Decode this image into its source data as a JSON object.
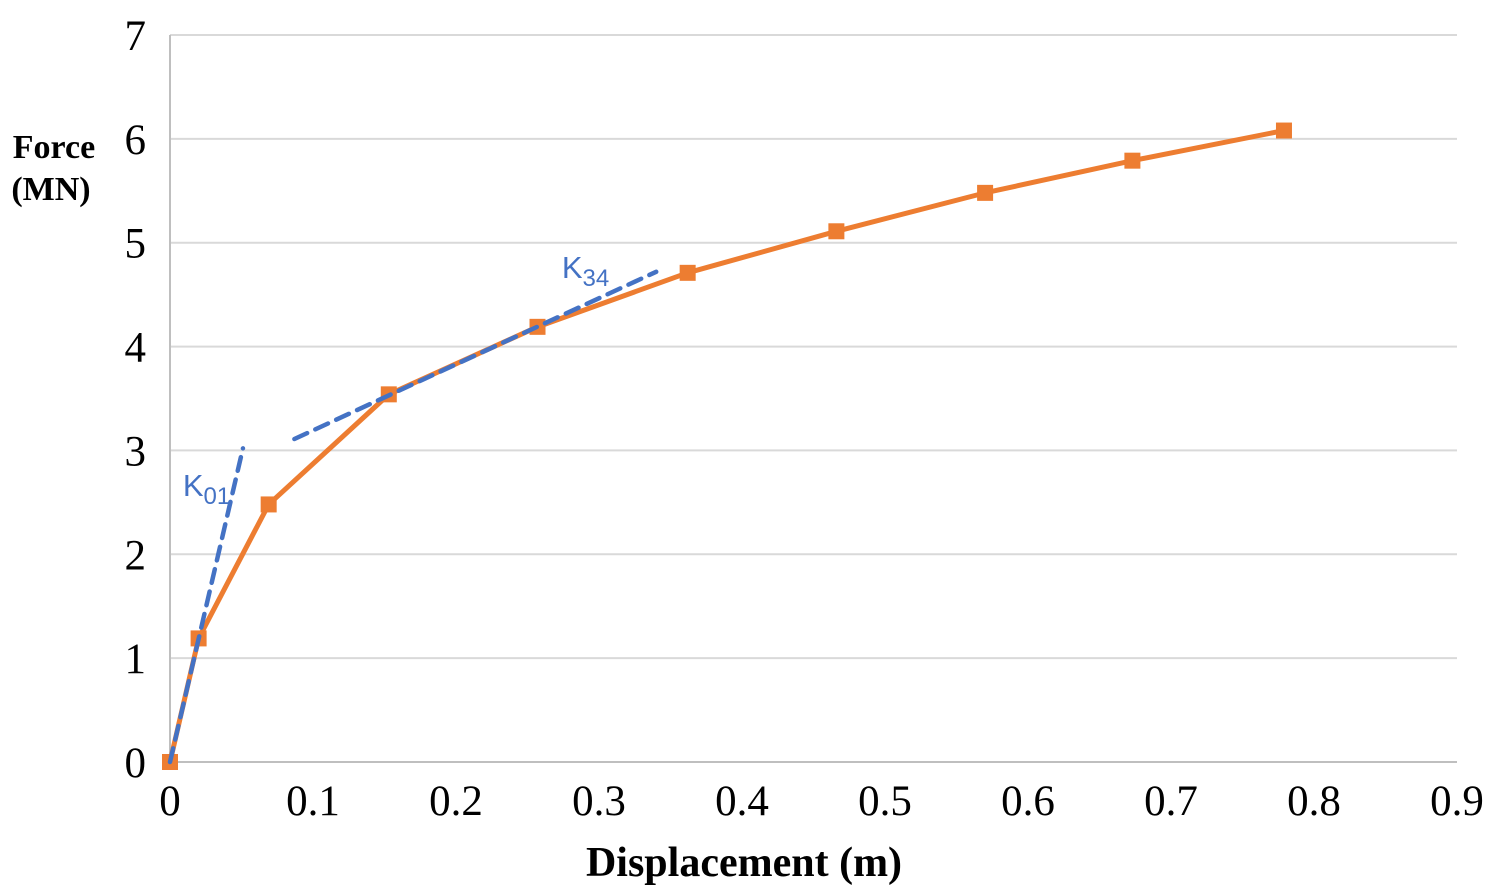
{
  "chart_data": {
    "type": "line",
    "title": "",
    "xlabel": "Displacement (m)",
    "ylabel": "Force (MN)",
    "ylabel_lines": [
      "Force",
      "(MN)"
    ],
    "xlim": [
      0,
      0.9
    ],
    "ylim": [
      0,
      7
    ],
    "x_ticks": [
      0,
      0.1,
      0.2,
      0.3,
      0.4,
      0.5,
      0.6,
      0.7,
      0.8,
      0.9
    ],
    "x_tick_labels": [
      "0",
      "0.1",
      "0.2",
      "0.3",
      "0.4",
      "0.5",
      "0.6",
      "0.7",
      "0.8",
      "0.9"
    ],
    "y_ticks": [
      0,
      1,
      2,
      3,
      4,
      5,
      6,
      7
    ],
    "y_tick_labels": [
      "0",
      "1",
      "2",
      "3",
      "4",
      "5",
      "6",
      "7"
    ],
    "grid": "horizontal-only",
    "legend": "none",
    "series": [
      {
        "name": "force-displacement-curve",
        "color": "#ED7D31",
        "marker": "square",
        "points": [
          [
            0,
            0
          ],
          [
            0.02,
            1.19
          ],
          [
            0.069,
            2.48
          ],
          [
            0.153,
            3.54
          ],
          [
            0.257,
            4.19
          ],
          [
            0.362,
            4.71
          ],
          [
            0.466,
            5.11
          ],
          [
            0.57,
            5.48
          ],
          [
            0.673,
            5.79
          ],
          [
            0.779,
            6.08
          ]
        ]
      }
    ],
    "annotations": [
      {
        "name": "K01",
        "label_main": "K",
        "label_sub": "01",
        "color": "#4472C4",
        "style": "dashed",
        "line_from": [
          0,
          0
        ],
        "line_to": [
          0.051,
          3.02
        ],
        "label_pos": [
          0.009,
          2.56
        ]
      },
      {
        "name": "K34",
        "label_main": "K",
        "label_sub": "34",
        "color": "#4472C4",
        "style": "dashed",
        "line_from": [
          0.087,
          3.11
        ],
        "line_to": [
          0.34,
          4.72
        ],
        "label_pos": [
          0.274,
          4.66
        ]
      }
    ],
    "colors": {
      "curve": "#ED7D31",
      "stiffness_lines": "#4472C4",
      "gridline": "#D9D9D9",
      "axis_line": "#BFBFBF",
      "text": "#000000"
    }
  }
}
